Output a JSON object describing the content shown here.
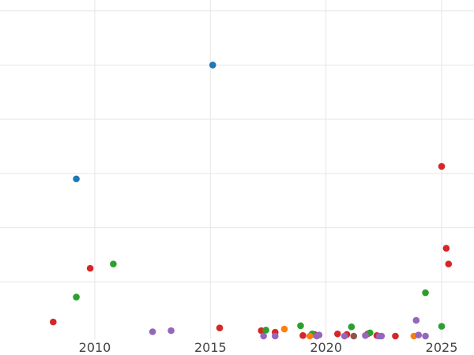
{
  "chart_data": {
    "type": "scatter",
    "title": "",
    "xlabel": "",
    "ylabel": "",
    "grid": true,
    "xlim": [
      2005.9,
      2026.4
    ],
    "ylim": [
      0,
      62
    ],
    "x_ticks": [
      {
        "value": 2010,
        "label": "2010"
      },
      {
        "value": 2015,
        "label": "2015"
      },
      {
        "value": 2020,
        "label": "2020"
      },
      {
        "value": 2025,
        "label": "2025"
      }
    ],
    "y_grid_values": [
      10,
      20,
      30,
      40,
      50,
      60
    ],
    "series": [
      {
        "color": "#1f77b4",
        "points": [
          {
            "x": 2009.2,
            "y": 29
          },
          {
            "x": 2015.1,
            "y": 50
          }
        ]
      },
      {
        "color": "#d62728",
        "points": [
          {
            "x": 2008.2,
            "y": 2.6
          },
          {
            "x": 2009.8,
            "y": 12.5
          },
          {
            "x": 2015.4,
            "y": 1.5
          },
          {
            "x": 2017.2,
            "y": 1.0
          },
          {
            "x": 2017.8,
            "y": 0.7
          },
          {
            "x": 2019.0,
            "y": 0.1
          },
          {
            "x": 2019.5,
            "y": 0.3
          },
          {
            "x": 2020.5,
            "y": 0.4
          },
          {
            "x": 2020.9,
            "y": 0.3
          },
          {
            "x": 2021.8,
            "y": 0.4
          },
          {
            "x": 2022.2,
            "y": 0.1
          },
          {
            "x": 2023.0,
            "y": 0.0
          },
          {
            "x": 2025.0,
            "y": 31.3
          },
          {
            "x": 2025.2,
            "y": 16.2
          },
          {
            "x": 2025.3,
            "y": 13.3
          }
        ]
      },
      {
        "color": "#2ca02c",
        "points": [
          {
            "x": 2009.2,
            "y": 7.2
          },
          {
            "x": 2010.8,
            "y": 13.3
          },
          {
            "x": 2017.4,
            "y": 1.1
          },
          {
            "x": 2018.9,
            "y": 1.9
          },
          {
            "x": 2019.4,
            "y": 0.4
          },
          {
            "x": 2021.1,
            "y": 1.7
          },
          {
            "x": 2021.9,
            "y": 0.6
          },
          {
            "x": 2024.3,
            "y": 8.0
          },
          {
            "x": 2025.0,
            "y": 1.8
          }
        ]
      },
      {
        "color": "#ff7f0e",
        "points": [
          {
            "x": 2018.2,
            "y": 1.3
          },
          {
            "x": 2019.3,
            "y": 0.0
          },
          {
            "x": 2023.8,
            "y": 0.0
          }
        ]
      },
      {
        "color": "#9467bd",
        "points": [
          {
            "x": 2012.5,
            "y": 0.8
          },
          {
            "x": 2013.3,
            "y": 1.0
          },
          {
            "x": 2017.3,
            "y": 0.0
          },
          {
            "x": 2017.8,
            "y": 0.0
          },
          {
            "x": 2019.6,
            "y": 0.0
          },
          {
            "x": 2019.7,
            "y": 0.2
          },
          {
            "x": 2020.8,
            "y": 0.0
          },
          {
            "x": 2021.7,
            "y": 0.1
          },
          {
            "x": 2022.3,
            "y": 0.0
          },
          {
            "x": 2022.4,
            "y": 0.0
          },
          {
            "x": 2023.9,
            "y": 2.9
          },
          {
            "x": 2024.0,
            "y": 0.2
          },
          {
            "x": 2024.3,
            "y": 0.0
          }
        ]
      },
      {
        "color": "#8c564b",
        "points": [
          {
            "x": 2021.2,
            "y": 0.0
          }
        ]
      }
    ]
  }
}
